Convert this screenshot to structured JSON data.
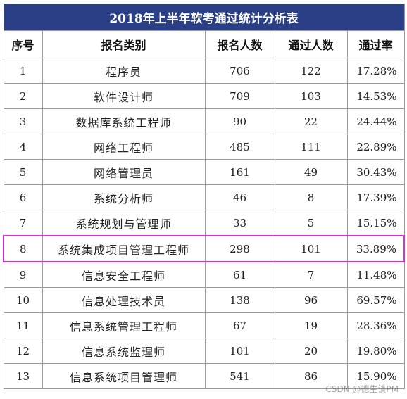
{
  "table": {
    "title": "2018年上半年软考通过统计分析表",
    "headers": {
      "seq": "序号",
      "category": "报名类别",
      "registered": "报名人数",
      "passed": "通过人数",
      "rate": "通过率"
    },
    "rows": [
      {
        "seq": "1",
        "category": "程序员",
        "registered": "706",
        "passed": "122",
        "rate": "17.28%"
      },
      {
        "seq": "2",
        "category": "软件设计师",
        "registered": "709",
        "passed": "103",
        "rate": "14.53%"
      },
      {
        "seq": "3",
        "category": "数据库系统工程师",
        "registered": "90",
        "passed": "22",
        "rate": "24.44%"
      },
      {
        "seq": "4",
        "category": "网络工程师",
        "registered": "485",
        "passed": "111",
        "rate": "22.89%"
      },
      {
        "seq": "5",
        "category": "网络管理员",
        "registered": "161",
        "passed": "49",
        "rate": "30.43%"
      },
      {
        "seq": "6",
        "category": "系统分析师",
        "registered": "46",
        "passed": "8",
        "rate": "17.39%"
      },
      {
        "seq": "7",
        "category": "系统规划与管理师",
        "registered": "33",
        "passed": "5",
        "rate": "15.15%"
      },
      {
        "seq": "8",
        "category": "系统集成项目管理工程师",
        "registered": "298",
        "passed": "101",
        "rate": "33.89%"
      },
      {
        "seq": "9",
        "category": "信息安全工程师",
        "registered": "61",
        "passed": "7",
        "rate": "11.48%"
      },
      {
        "seq": "10",
        "category": "信息处理技术员",
        "registered": "138",
        "passed": "96",
        "rate": "69.57%"
      },
      {
        "seq": "11",
        "category": "信息系统管理工程师",
        "registered": "67",
        "passed": "19",
        "rate": "28.36%"
      },
      {
        "seq": "12",
        "category": "信息系统监理师",
        "registered": "101",
        "passed": "20",
        "rate": "19.80%"
      },
      {
        "seq": "13",
        "category": "信息系统项目管理师",
        "registered": "541",
        "passed": "86",
        "rate": "15.90%"
      }
    ],
    "highlight_row": 8,
    "colors": {
      "title_bg": "#2b3f87",
      "highlight_border": "#d52fd5"
    }
  },
  "watermark": "CSDN @德生谈PM"
}
